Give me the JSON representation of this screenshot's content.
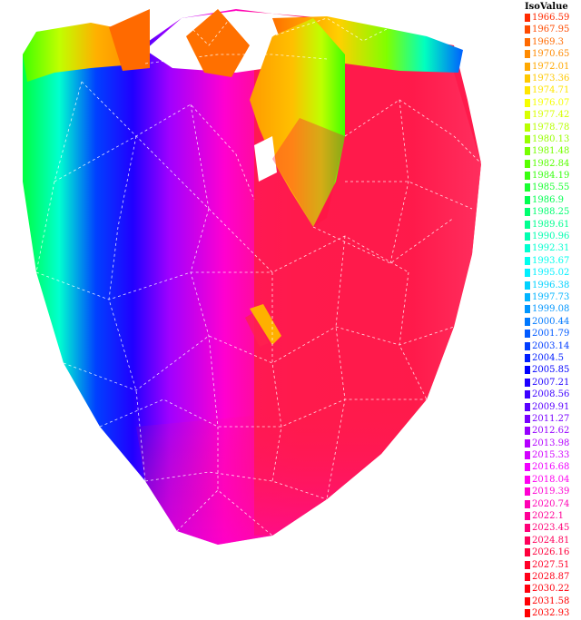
{
  "legend": {
    "title": "IsoValue",
    "entries": [
      {
        "value": "1966.59",
        "color": "#ff2a00"
      },
      {
        "value": "1967.95",
        "color": "#ff4b00"
      },
      {
        "value": "1969.3",
        "color": "#ff6a00"
      },
      {
        "value": "1970.65",
        "color": "#ff8a00"
      },
      {
        "value": "1972.01",
        "color": "#ffa800"
      },
      {
        "value": "1973.36",
        "color": "#ffc800"
      },
      {
        "value": "1974.71",
        "color": "#ffe600"
      },
      {
        "value": "1976.07",
        "color": "#f6ff00"
      },
      {
        "value": "1977.42",
        "color": "#d8ff00"
      },
      {
        "value": "1978.78",
        "color": "#b8ff00"
      },
      {
        "value": "1980.13",
        "color": "#98ff00"
      },
      {
        "value": "1981.48",
        "color": "#78ff00"
      },
      {
        "value": "1982.84",
        "color": "#58ff00"
      },
      {
        "value": "1984.19",
        "color": "#38ff10"
      },
      {
        "value": "1985.55",
        "color": "#18ff30"
      },
      {
        "value": "1986.9",
        "color": "#00ff50"
      },
      {
        "value": "1988.25",
        "color": "#00ff70"
      },
      {
        "value": "1989.61",
        "color": "#00ff90"
      },
      {
        "value": "1990.96",
        "color": "#00ffb0"
      },
      {
        "value": "1992.31",
        "color": "#00ffd0"
      },
      {
        "value": "1993.67",
        "color": "#00ffee"
      },
      {
        "value": "1995.02",
        "color": "#00f0ff"
      },
      {
        "value": "1996.38",
        "color": "#00d2ff"
      },
      {
        "value": "1997.73",
        "color": "#00b4ff"
      },
      {
        "value": "1999.08",
        "color": "#0096ff"
      },
      {
        "value": "2000.44",
        "color": "#0078ff"
      },
      {
        "value": "2001.79",
        "color": "#005aff"
      },
      {
        "value": "2003.14",
        "color": "#003cff"
      },
      {
        "value": "2004.5",
        "color": "#001eff"
      },
      {
        "value": "2005.85",
        "color": "#0000ff"
      },
      {
        "value": "2007.21",
        "color": "#1e00ff"
      },
      {
        "value": "2008.56",
        "color": "#3c00ff"
      },
      {
        "value": "2009.91",
        "color": "#5a00ff"
      },
      {
        "value": "2011.27",
        "color": "#7800ff"
      },
      {
        "value": "2012.62",
        "color": "#9600ff"
      },
      {
        "value": "2013.98",
        "color": "#b400ff"
      },
      {
        "value": "2015.33",
        "color": "#d200ff"
      },
      {
        "value": "2016.68",
        "color": "#f000ff"
      },
      {
        "value": "2018.04",
        "color": "#ff00f0"
      },
      {
        "value": "2019.39",
        "color": "#ff00d2"
      },
      {
        "value": "2020.74",
        "color": "#ff00b4"
      },
      {
        "value": "2022.1",
        "color": "#ff0096"
      },
      {
        "value": "2023.45",
        "color": "#ff0078"
      },
      {
        "value": "2024.81",
        "color": "#ff005a"
      },
      {
        "value": "2026.16",
        "color": "#ff003c"
      },
      {
        "value": "2027.51",
        "color": "#ff0028"
      },
      {
        "value": "2028.87",
        "color": "#ff0018"
      },
      {
        "value": "2030.22",
        "color": "#ff000c"
      },
      {
        "value": "2031.58",
        "color": "#ff0004"
      },
      {
        "value": "2032.93",
        "color": "#ff0000"
      }
    ]
  },
  "surface_colors": {
    "body": "#ff1a4a",
    "inner": "#ff1040",
    "mesh_lines": "#ffffff"
  }
}
